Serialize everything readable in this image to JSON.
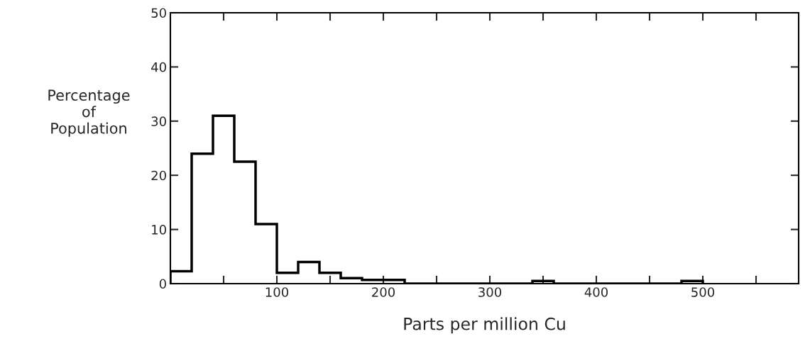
{
  "chart_data": {
    "type": "histogram",
    "xlabel": "Parts per million Cu",
    "ylabel": "Percentage\nof\nPopulation",
    "bins": [
      0,
      20,
      40,
      60,
      80,
      100,
      120,
      140,
      160,
      180,
      200,
      220,
      340,
      360,
      480,
      500
    ],
    "values": [
      2.3,
      24,
      31,
      22.5,
      11,
      2,
      4,
      2,
      1,
      0.7,
      0.7,
      0,
      0.5,
      0,
      0.5
    ],
    "color": "#000000",
    "xlim": [
      0,
      590
    ],
    "ylim": [
      0,
      50
    ],
    "xticks": [
      {
        "value": 50,
        "label": null
      },
      100,
      {
        "value": 150,
        "label": null
      },
      200,
      {
        "value": 250,
        "label": null
      },
      300,
      {
        "value": 350,
        "label": null
      },
      400,
      {
        "value": 450,
        "label": null
      },
      500,
      {
        "value": 550,
        "label": null
      }
    ],
    "yticks": [
      0,
      10,
      20,
      30,
      40,
      50
    ],
    "grid": false
  }
}
